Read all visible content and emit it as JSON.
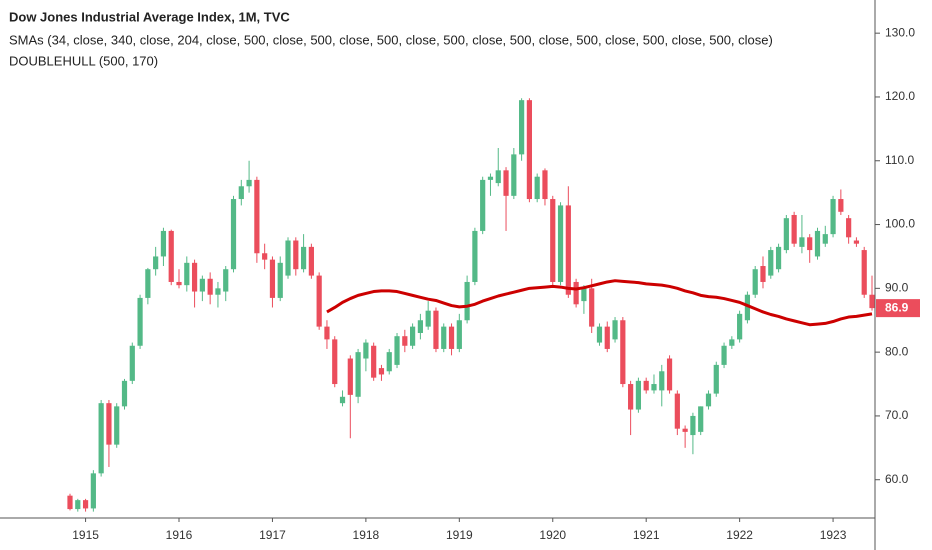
{
  "chart_data": {
    "type": "candlestick",
    "title": "Dow Jones Industrial Average Index, 1M, TVC",
    "indicators": [
      "SMAs (34, close, 340, close, 204, close, 500, close, 500, close, 500, close, 500, close, 500, close, 500, close, 500, close, 500, close)",
      "DOUBLEHULL (500, 170)"
    ],
    "categories": [
      null,
      null,
      "1915",
      null,
      null,
      null,
      null,
      null,
      null,
      null,
      null,
      null,
      null,
      null,
      "1916",
      null,
      null,
      null,
      null,
      null,
      null,
      null,
      null,
      null,
      null,
      null,
      "1917",
      null,
      null,
      null,
      null,
      null,
      null,
      null,
      null,
      null,
      null,
      null,
      "1918",
      null,
      null,
      null,
      null,
      null,
      null,
      null,
      null,
      null,
      null,
      null,
      "1919",
      null,
      null,
      null,
      null,
      null,
      null,
      null,
      null,
      null,
      null,
      null,
      "1920",
      null,
      null,
      null,
      null,
      null,
      null,
      null,
      null,
      null,
      null,
      null,
      "1921",
      null,
      null,
      null,
      null,
      null,
      null,
      null,
      null,
      null,
      null,
      null,
      "1922",
      null,
      null,
      null,
      null,
      null,
      null,
      null,
      null,
      null,
      null,
      null,
      "1923",
      null,
      null,
      null,
      null,
      null
    ],
    "candles": [
      [
        57.5,
        57.8,
        55.2,
        55.4
      ],
      [
        55.4,
        57,
        55,
        56.8
      ],
      [
        56.8,
        57,
        55,
        55.5
      ],
      [
        55.5,
        61.5,
        55,
        61
      ],
      [
        61,
        72.5,
        60.5,
        72
      ],
      [
        72,
        72.5,
        62,
        65.5
      ],
      [
        65.5,
        72,
        65,
        71.5
      ],
      [
        71.5,
        75.8,
        71,
        75.5
      ],
      [
        75.5,
        81.5,
        75,
        81
      ],
      [
        81,
        89,
        80.5,
        88.5
      ],
      [
        88.5,
        93.2,
        87.5,
        93
      ],
      [
        93,
        96.5,
        92,
        95
      ],
      [
        95,
        99.5,
        93.5,
        99
      ],
      [
        99,
        99.2,
        90.5,
        91
      ],
      [
        91,
        93,
        90,
        90.5
      ],
      [
        90.5,
        95,
        89.5,
        94
      ],
      [
        94,
        94.5,
        87,
        89.5
      ],
      [
        89.5,
        92,
        88,
        91.5
      ],
      [
        91.5,
        92.5,
        87.5,
        89
      ],
      [
        89,
        91,
        87,
        90
      ],
      [
        89.5,
        93.5,
        88,
        93
      ],
      [
        93,
        104.5,
        92.5,
        104
      ],
      [
        104,
        107,
        103,
        106
      ],
      [
        106,
        110,
        105,
        107
      ],
      [
        107,
        107.5,
        94,
        95.5
      ],
      [
        95.5,
        97,
        93,
        94.5
      ],
      [
        94.5,
        95,
        87,
        88.5
      ],
      [
        88.5,
        95,
        88,
        94
      ],
      [
        92,
        98,
        91.5,
        97.5
      ],
      [
        97.5,
        98,
        92,
        93
      ],
      [
        93,
        98.5,
        92.5,
        96.5
      ],
      [
        96.5,
        97,
        91.5,
        92
      ],
      [
        92,
        92.5,
        83.5,
        84
      ],
      [
        84,
        85,
        80.5,
        82
      ],
      [
        82,
        82.5,
        74.5,
        75
      ],
      [
        72,
        74,
        71.5,
        73
      ],
      [
        79,
        79.5,
        66.5,
        73.3
      ],
      [
        73,
        80.5,
        72,
        80
      ],
      [
        79,
        82,
        77,
        81.5
      ],
      [
        81,
        81.5,
        75.5,
        76
      ],
      [
        77.5,
        78,
        75.5,
        76.5
      ],
      [
        77,
        80.5,
        76.5,
        80
      ],
      [
        78,
        83,
        77.5,
        82.5
      ],
      [
        82.5,
        83.5,
        80,
        81
      ],
      [
        81,
        84.5,
        80.5,
        84
      ],
      [
        83,
        86,
        82,
        85
      ],
      [
        84,
        88,
        83.5,
        86.5
      ],
      [
        86.5,
        87,
        80,
        80.5
      ],
      [
        80.5,
        84.5,
        80,
        84
      ],
      [
        84,
        84.5,
        79.5,
        80.5
      ],
      [
        80.5,
        86,
        80,
        85
      ],
      [
        85,
        92,
        84.5,
        91
      ],
      [
        91,
        99.5,
        90.5,
        99
      ],
      [
        99,
        107.5,
        98.5,
        107
      ],
      [
        107,
        108,
        104.5,
        107.5
      ],
      [
        106.5,
        112,
        106,
        108.5
      ],
      [
        108.5,
        109,
        99,
        104.5
      ],
      [
        104.5,
        112,
        104,
        111
      ],
      [
        111,
        119.8,
        110,
        119.5
      ],
      [
        119.5,
        119.8,
        103.5,
        104
      ],
      [
        104,
        108,
        103.5,
        107.5
      ],
      [
        108.5,
        108.8,
        103,
        104
      ],
      [
        104,
        104.5,
        90.5,
        91
      ],
      [
        91,
        103.5,
        90.5,
        103
      ],
      [
        103,
        106,
        88.5,
        89
      ],
      [
        91,
        91.5,
        87,
        87.5
      ],
      [
        88,
        90.5,
        86,
        90
      ],
      [
        90,
        91.5,
        83,
        84
      ],
      [
        81.5,
        84.5,
        81,
        84
      ],
      [
        84,
        84.8,
        80,
        80.5
      ],
      [
        82,
        85.5,
        81.5,
        85
      ],
      [
        85,
        85.5,
        74.5,
        75
      ],
      [
        75,
        75.5,
        67,
        71
      ],
      [
        71,
        76,
        70.5,
        75.5
      ],
      [
        75.5,
        76,
        73.5,
        74
      ],
      [
        74,
        76.5,
        73.5,
        75
      ],
      [
        74,
        78,
        71.5,
        77
      ],
      [
        79,
        79.5,
        73.5,
        74
      ],
      [
        73.5,
        74,
        67,
        68
      ],
      [
        68,
        68.5,
        65,
        67.5
      ],
      [
        67,
        70.5,
        64,
        70
      ],
      [
        67.5,
        71.5,
        67,
        71.5
      ],
      [
        71.5,
        74,
        71,
        73.5
      ],
      [
        73.5,
        78.5,
        73,
        78
      ],
      [
        78,
        81.5,
        77.5,
        81
      ],
      [
        81,
        82.5,
        80.5,
        82
      ],
      [
        82,
        86.5,
        81.5,
        86
      ],
      [
        85,
        89.5,
        84.5,
        89
      ],
      [
        89,
        93.5,
        88.5,
        93
      ],
      [
        93.5,
        95,
        90,
        91
      ],
      [
        92,
        96.5,
        91.5,
        96
      ],
      [
        93,
        97,
        92.5,
        96.5
      ],
      [
        96,
        101.5,
        95.5,
        101
      ],
      [
        101.5,
        102,
        96.5,
        97
      ],
      [
        96.5,
        101.5,
        95.5,
        98
      ],
      [
        98,
        98.5,
        94,
        96
      ],
      [
        95,
        99.5,
        94.5,
        99
      ],
      [
        97,
        99.8,
        96.5,
        98.5
      ],
      [
        98.5,
        104.5,
        98,
        104
      ],
      [
        104,
        105.5,
        101.5,
        102
      ],
      [
        101,
        101.5,
        97,
        98
      ],
      [
        97.5,
        98,
        96.5,
        97
      ],
      [
        96,
        96.5,
        88.5,
        89
      ],
      [
        89,
        92,
        86.5,
        86.9
      ]
    ],
    "overlay": {
      "color": "#cc0000",
      "values": [
        null,
        null,
        null,
        null,
        null,
        null,
        null,
        null,
        null,
        null,
        null,
        null,
        null,
        null,
        null,
        null,
        null,
        null,
        null,
        null,
        null,
        null,
        null,
        null,
        null,
        null,
        null,
        null,
        null,
        null,
        null,
        null,
        null,
        86.3,
        87,
        87.8,
        88.4,
        88.9,
        89.2,
        89.5,
        89.6,
        89.6,
        89.5,
        89.2,
        88.9,
        88.6,
        88.3,
        88.1,
        87.7,
        87.3,
        87.1,
        87.2,
        87.5,
        88,
        88.4,
        88.8,
        89.1,
        89.4,
        89.7,
        90,
        90.1,
        90.2,
        90.3,
        90.2,
        90,
        89.9,
        90.1,
        90.4,
        90.7,
        91,
        91.2,
        91.1,
        91,
        90.9,
        90.7,
        90.6,
        90.5,
        90.3,
        90,
        89.6,
        89.3,
        88.9,
        88.7,
        88.6,
        88.4,
        88.1,
        87.8,
        87.3,
        86.8,
        86.3,
        85.9,
        85.6,
        85.2,
        84.9,
        84.6,
        84.3,
        84.4,
        84.5,
        84.8,
        85.2,
        85.5,
        85.6,
        85.8,
        86
      ]
    },
    "up_color": "#53b987",
    "down_color": "#eb4d5c",
    "ylim": [
      54,
      135.2
    ],
    "yticks": [
      {
        "value": 60,
        "label": "60.0"
      },
      {
        "value": 70,
        "label": "70.0"
      },
      {
        "value": 80,
        "label": "80.0"
      },
      {
        "value": 90,
        "label": "90.0"
      },
      {
        "value": 100,
        "label": "100.0"
      },
      {
        "value": 110,
        "label": "110.0"
      },
      {
        "value": 120,
        "label": "120.0"
      },
      {
        "value": 130,
        "label": "130.0"
      }
    ],
    "grid": false
  }
}
